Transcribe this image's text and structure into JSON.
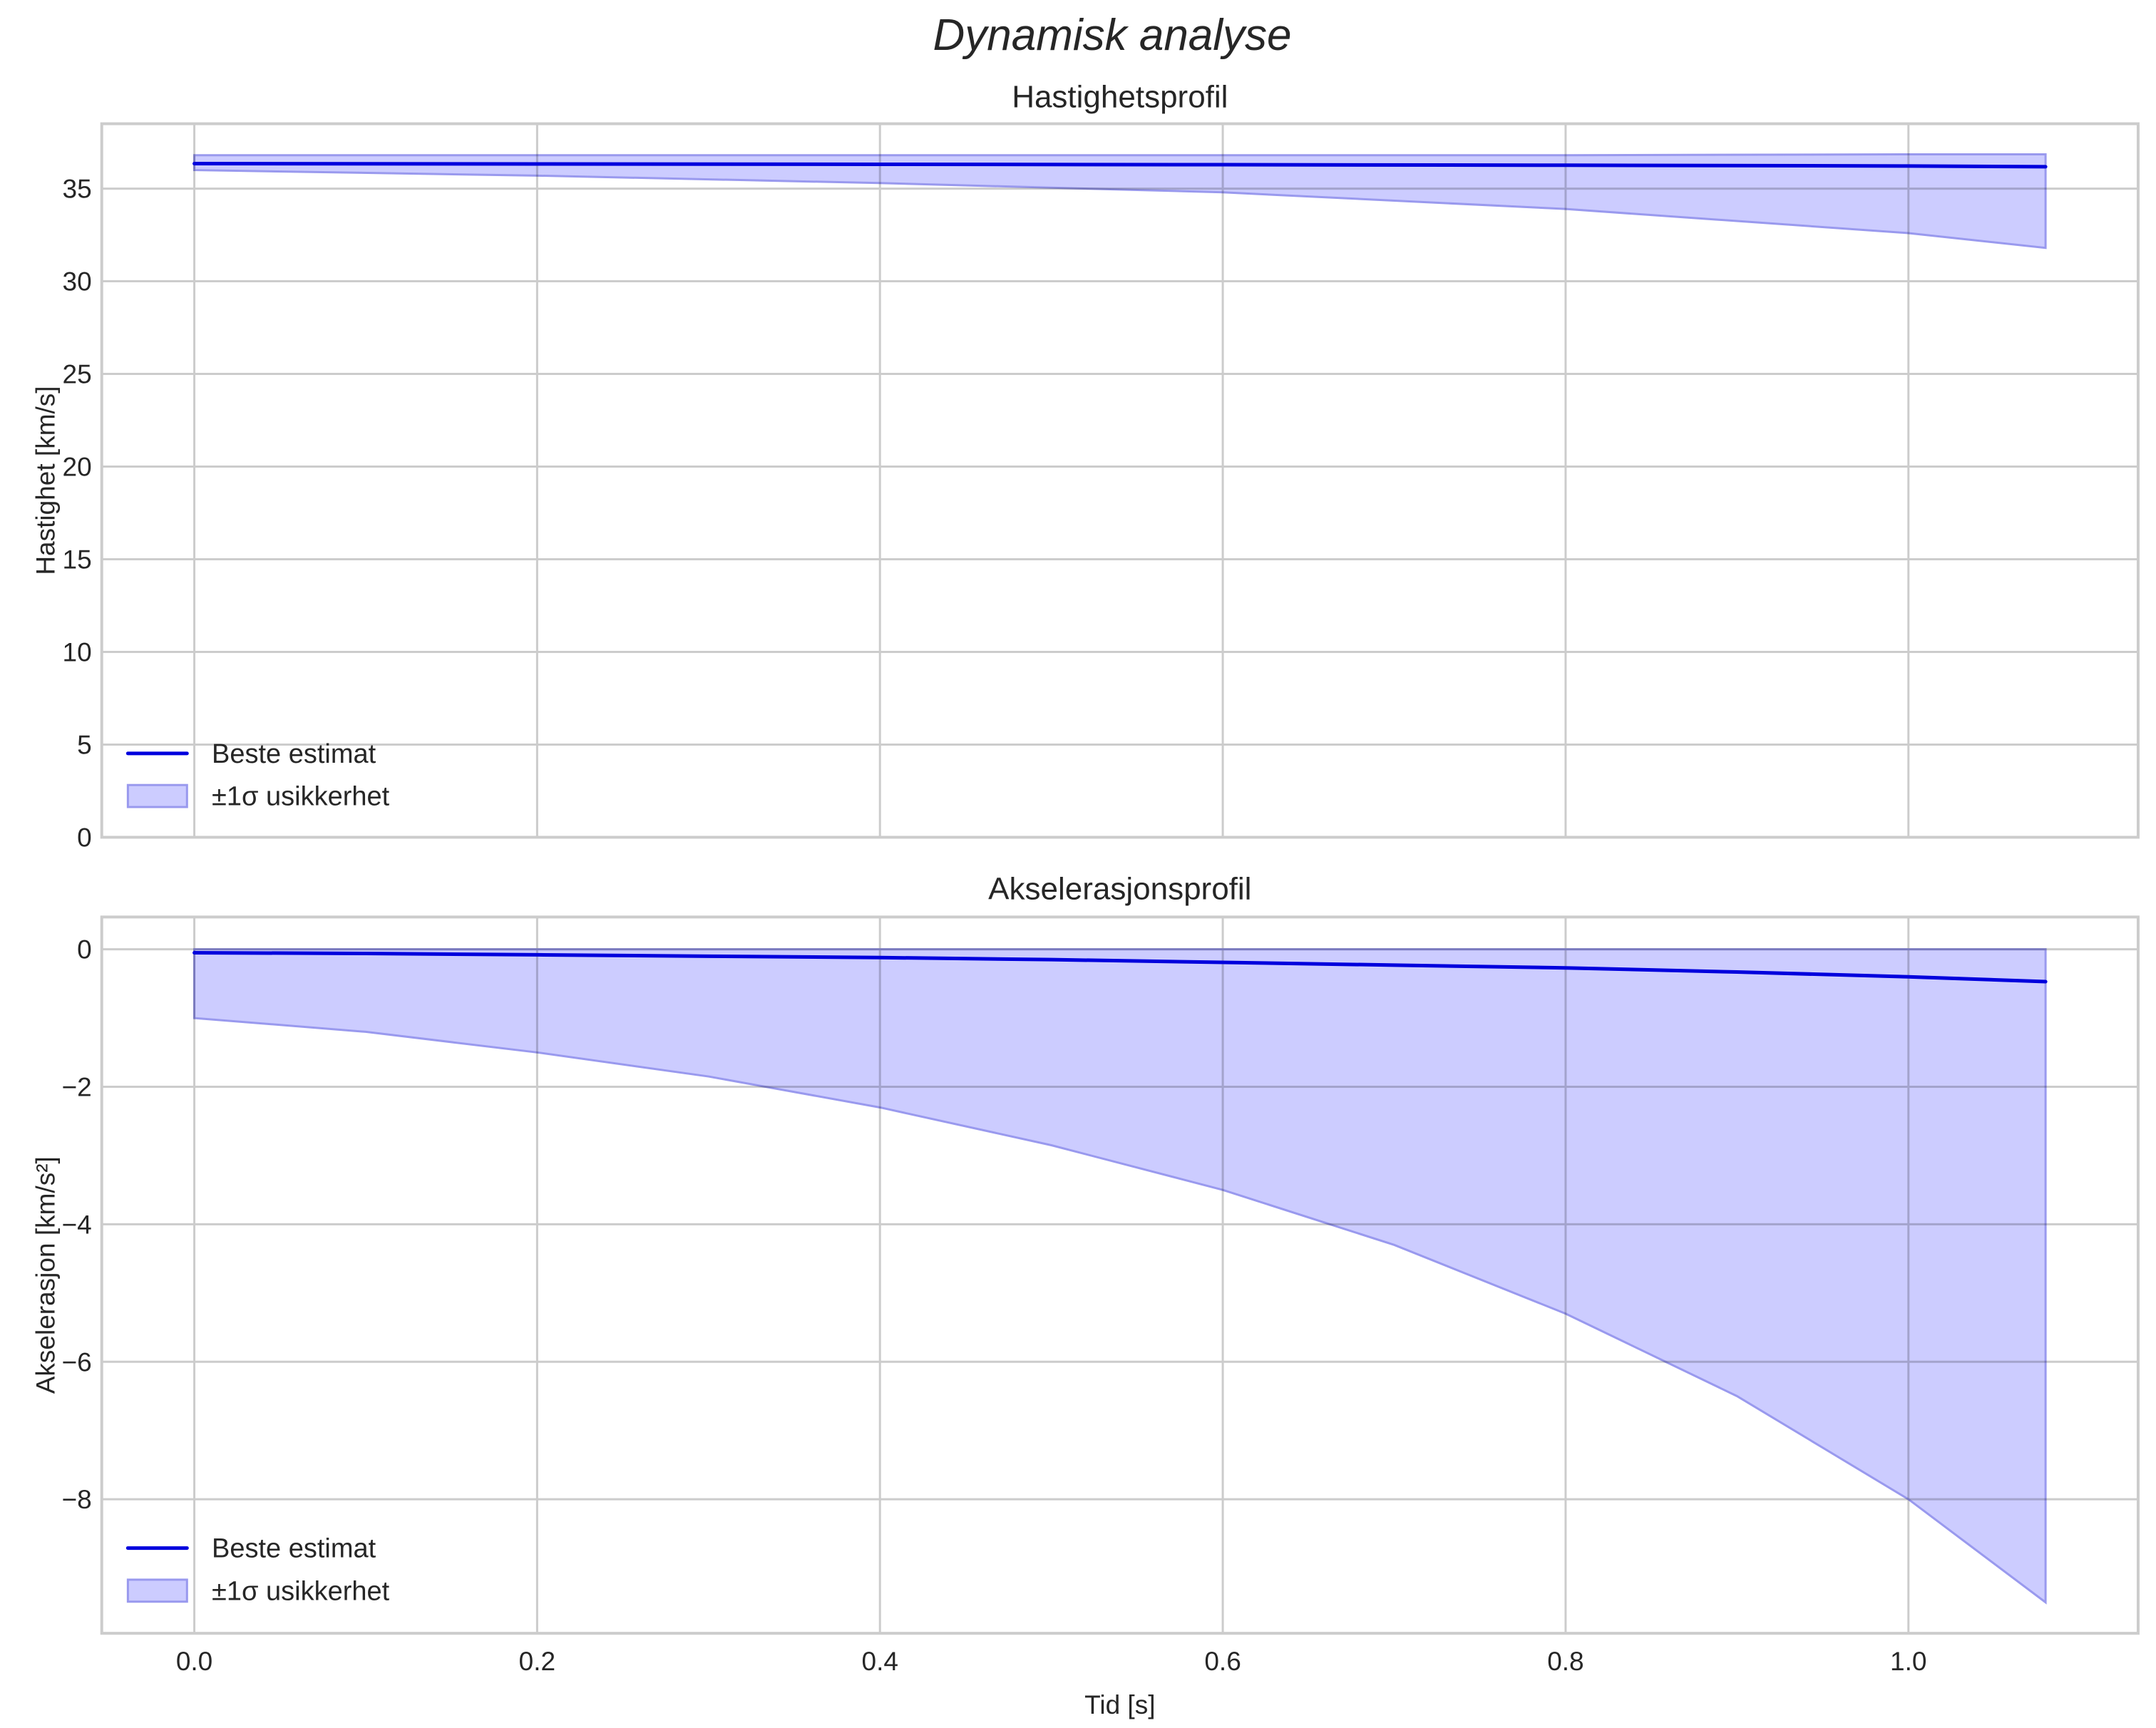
{
  "figure": {
    "suptitle": "Dynamisk analyse",
    "background": "#ffffff",
    "grid_color": "#cccccc",
    "line_color": "#0000dd",
    "band_color": "#ccccff",
    "band_edge_color": "#9999ee"
  },
  "chart_data": [
    {
      "type": "line",
      "title": "Hastighetsprofil",
      "xlabel": "",
      "ylabel": "Hastighet [km/s]",
      "xlim": [
        -0.054,
        1.134
      ],
      "ylim": [
        0,
        38.5
      ],
      "grid": true,
      "legend_position": "lower left",
      "x_ticks": [
        "0.0",
        "0.2",
        "0.4",
        "0.6",
        "0.8",
        "1.0"
      ],
      "y_ticks": [
        "0",
        "5",
        "10",
        "15",
        "20",
        "25",
        "30",
        "35"
      ],
      "x": [
        0.0,
        0.2,
        0.4,
        0.6,
        0.8,
        1.0,
        1.08
      ],
      "series": [
        {
          "name": "Beste estimat",
          "kind": "line",
          "values": [
            36.35,
            36.33,
            36.31,
            36.29,
            36.26,
            36.22,
            36.18
          ]
        },
        {
          "name": "±1σ usikkerhet",
          "kind": "band",
          "upper": [
            36.8,
            36.8,
            36.8,
            36.8,
            36.8,
            36.85,
            36.85
          ],
          "lower": [
            36.0,
            35.7,
            35.3,
            34.8,
            33.9,
            32.6,
            31.8
          ]
        }
      ],
      "legend": [
        "Beste estimat",
        "±1σ usikkerhet"
      ]
    },
    {
      "type": "line",
      "title": "Akselerasjonsprofil",
      "xlabel": "Tid [s]",
      "ylabel": "Akselerasjon [km/s²]",
      "xlim": [
        -0.054,
        1.134
      ],
      "ylim": [
        -9.95,
        0.47
      ],
      "grid": true,
      "legend_position": "lower left",
      "x_ticks": [
        "0.0",
        "0.2",
        "0.4",
        "0.6",
        "0.8",
        "1.0"
      ],
      "y_ticks": [
        "0",
        "−2",
        "−4",
        "−6",
        "−8"
      ],
      "x": [
        0.0,
        0.1,
        0.2,
        0.3,
        0.4,
        0.5,
        0.6,
        0.7,
        0.8,
        0.9,
        1.0,
        1.08
      ],
      "series": [
        {
          "name": "Beste estimat",
          "kind": "line",
          "values": [
            -0.05,
            -0.06,
            -0.08,
            -0.1,
            -0.12,
            -0.15,
            -0.19,
            -0.23,
            -0.27,
            -0.33,
            -0.4,
            -0.47
          ]
        },
        {
          "name": "±1σ usikkerhet",
          "kind": "band",
          "upper": [
            0,
            0,
            0,
            0,
            0,
            0,
            0,
            0,
            0,
            0,
            0,
            0
          ],
          "lower": [
            -1.0,
            -1.2,
            -1.5,
            -1.85,
            -2.3,
            -2.85,
            -3.5,
            -4.3,
            -5.3,
            -6.5,
            -8.0,
            -9.5
          ]
        }
      ],
      "legend": [
        "Beste estimat",
        "±1σ usikkerhet"
      ]
    }
  ]
}
